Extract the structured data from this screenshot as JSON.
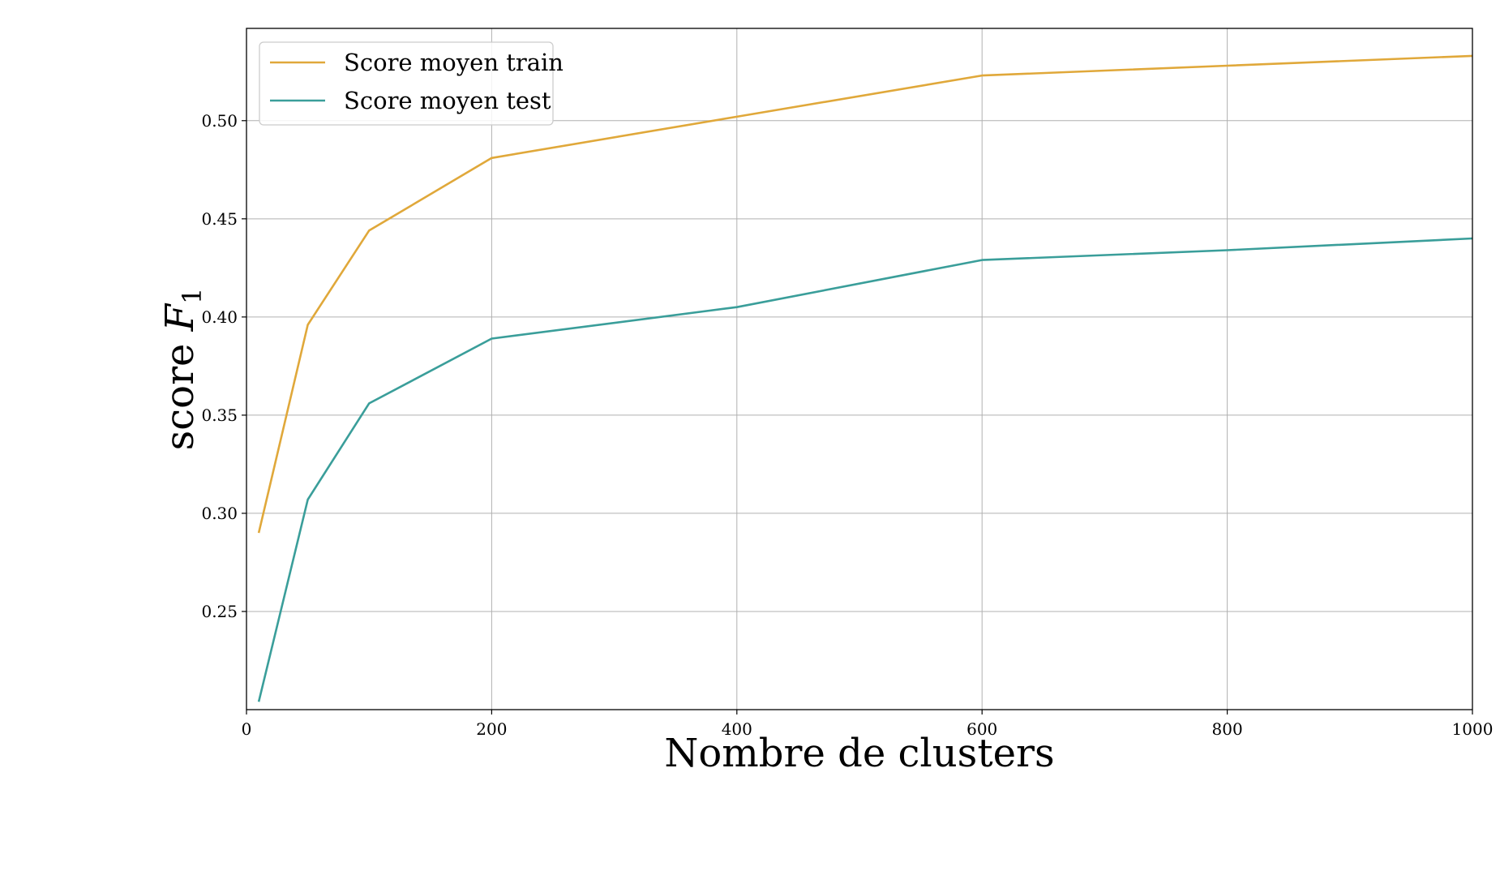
{
  "chart_data": {
    "type": "line",
    "xlabel": "Nombre de clusters",
    "ylabel": {
      "prefix": "score ",
      "var": "F",
      "sub": "1"
    },
    "xlim": [
      0,
      1000
    ],
    "ylim": [
      0.2,
      0.547
    ],
    "x_ticks": [
      "0",
      "200",
      "400",
      "600",
      "800",
      "1000"
    ],
    "y_ticks": [
      "0.25",
      "0.30",
      "0.35",
      "0.40",
      "0.45",
      "0.50"
    ],
    "grid": true,
    "legend_position": "top-left",
    "x": [
      10,
      50,
      100,
      200,
      400,
      600,
      800,
      1000
    ],
    "series": [
      {
        "name": "Score moyen train",
        "color": "#e0a83a",
        "values": [
          0.29,
          0.396,
          0.444,
          0.481,
          0.502,
          0.523,
          0.528,
          0.533
        ]
      },
      {
        "name": "Score moyen test",
        "color": "#3a9e9a",
        "values": [
          0.204,
          0.307,
          0.356,
          0.389,
          0.405,
          0.429,
          0.434,
          0.44
        ]
      }
    ]
  }
}
